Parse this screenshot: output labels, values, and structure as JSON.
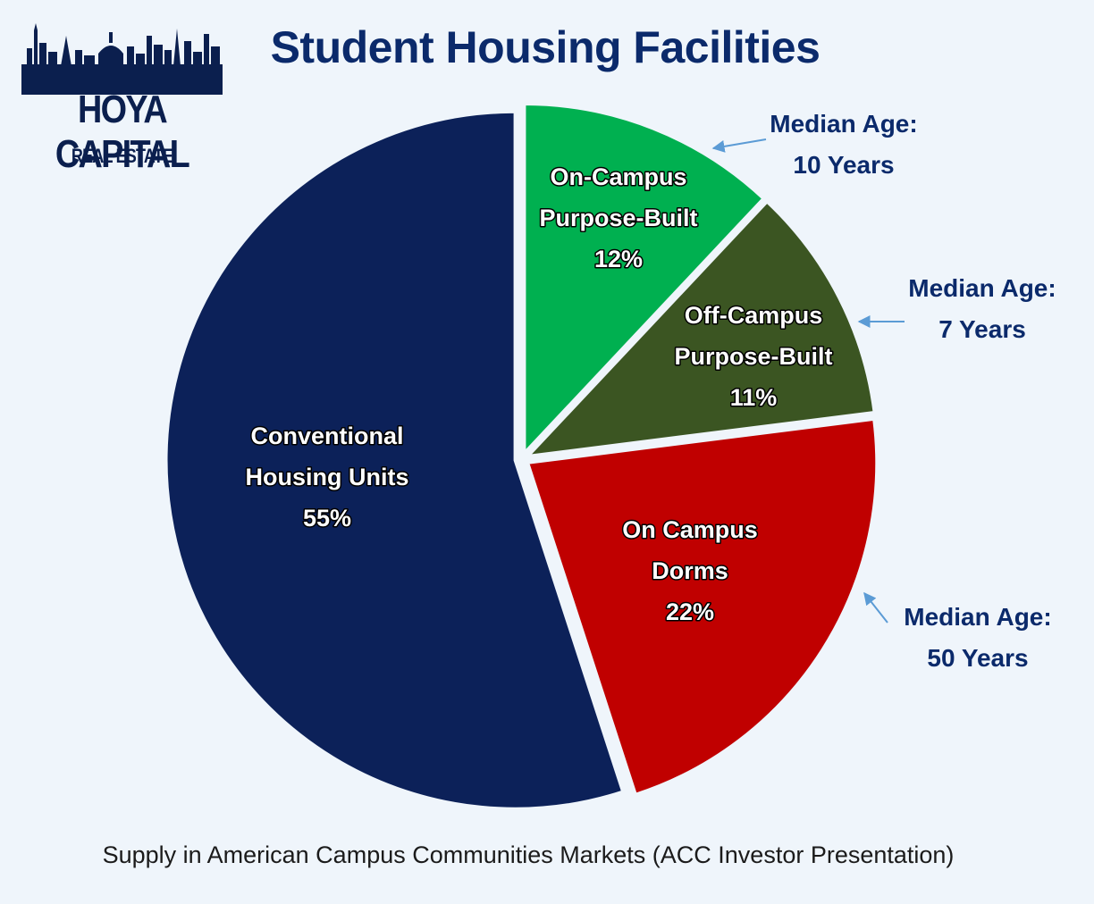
{
  "brand": {
    "name": "HOYA CAPITAL",
    "sub": "REAL ESTATE"
  },
  "chart_data": {
    "type": "pie",
    "title": "Student Housing Facilities",
    "caption": "Supply in American Campus Communities Markets (ACC Investor Presentation)",
    "slices": [
      {
        "label": [
          "On-Campus",
          "Purpose-Built"
        ],
        "value": 12,
        "value_label": "12%",
        "color": "#00b050",
        "annotation": [
          "Median Age:",
          "10 Years"
        ]
      },
      {
        "label": [
          "Off-Campus",
          "Purpose-Built"
        ],
        "value": 11,
        "value_label": "11%",
        "color": "#3b5522",
        "annotation": [
          "Median Age:",
          "7 Years"
        ]
      },
      {
        "label": [
          "On Campus",
          "Dorms"
        ],
        "value": 22,
        "value_label": "22%",
        "color": "#c00000",
        "annotation": [
          "Median Age:",
          "50 Years"
        ]
      },
      {
        "label": [
          "Conventional",
          "Housing Units"
        ],
        "value": 55,
        "value_label": "55%",
        "color": "#0c2159",
        "annotation": null
      }
    ],
    "annotation_arrow_color": "#5b9bd5"
  }
}
